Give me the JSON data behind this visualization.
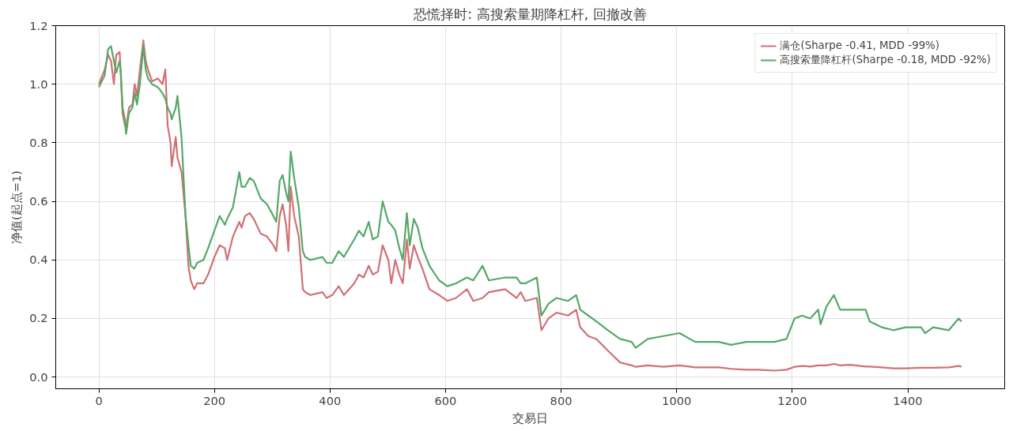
{
  "chart_data": {
    "type": "line",
    "title": "恐慌择时: 高搜索量期降杠杆, 回撤改善",
    "xlabel": "交易日",
    "ylabel": "净值(起点=1)",
    "x": [
      0,
      10,
      16,
      21,
      26,
      30,
      36,
      38,
      41,
      45,
      47,
      52,
      58,
      62,
      66,
      71,
      77,
      81,
      85,
      92,
      102,
      110,
      115,
      119,
      124,
      126,
      133,
      136,
      143,
      150,
      155,
      159,
      165,
      170,
      181,
      189,
      200,
      209,
      218,
      222,
      232,
      243,
      247,
      253,
      261,
      268,
      280,
      291,
      302,
      307,
      313,
      318,
      324,
      328,
      332,
      338,
      346,
      353,
      357,
      366,
      387,
      394,
      404,
      415,
      424,
      442,
      450,
      458,
      467,
      474,
      483,
      491,
      501,
      506,
      513,
      520,
      526,
      533,
      538,
      545,
      552,
      560,
      572,
      589,
      603,
      618,
      637,
      648,
      664,
      675,
      703,
      723,
      730,
      738,
      758,
      766,
      778,
      792,
      812,
      826,
      833,
      847,
      861,
      881,
      902,
      922,
      929,
      950,
      977,
      1005,
      1032,
      1073,
      1094,
      1121,
      1142,
      1169,
      1190,
      1204,
      1217,
      1231,
      1245,
      1249,
      1259,
      1272,
      1283,
      1300,
      1327,
      1334,
      1355,
      1375,
      1396,
      1423,
      1430,
      1444,
      1471,
      1488,
      1493
    ],
    "series": [
      {
        "name": "满仓(Sharpe -0.41, MDD -99%)",
        "color": "#d07175",
        "values": [
          1.0,
          1.05,
          1.1,
          1.08,
          1.0,
          1.1,
          1.11,
          1.03,
          0.9,
          0.86,
          0.85,
          0.92,
          0.93,
          1.0,
          0.96,
          1.05,
          1.15,
          1.08,
          1.05,
          1.01,
          1.02,
          1.0,
          1.05,
          0.86,
          0.8,
          0.72,
          0.82,
          0.75,
          0.7,
          0.55,
          0.38,
          0.33,
          0.3,
          0.32,
          0.32,
          0.35,
          0.41,
          0.45,
          0.44,
          0.4,
          0.48,
          0.53,
          0.51,
          0.55,
          0.56,
          0.54,
          0.49,
          0.48,
          0.45,
          0.43,
          0.55,
          0.59,
          0.52,
          0.43,
          0.65,
          0.55,
          0.48,
          0.3,
          0.29,
          0.28,
          0.29,
          0.27,
          0.28,
          0.31,
          0.28,
          0.32,
          0.35,
          0.34,
          0.38,
          0.35,
          0.36,
          0.45,
          0.4,
          0.32,
          0.4,
          0.35,
          0.32,
          0.47,
          0.37,
          0.45,
          0.41,
          0.37,
          0.3,
          0.28,
          0.26,
          0.27,
          0.3,
          0.26,
          0.27,
          0.29,
          0.3,
          0.27,
          0.29,
          0.26,
          0.27,
          0.16,
          0.2,
          0.22,
          0.21,
          0.23,
          0.17,
          0.14,
          0.13,
          0.09,
          0.05,
          0.04,
          0.035,
          0.04,
          0.035,
          0.04,
          0.033,
          0.033,
          0.028,
          0.025,
          0.025,
          0.022,
          0.025,
          0.035,
          0.038,
          0.036,
          0.04,
          0.04,
          0.04,
          0.045,
          0.04,
          0.042,
          0.036,
          0.036,
          0.033,
          0.03,
          0.03,
          0.032,
          0.032,
          0.032,
          0.033,
          0.038,
          0.036
        ]
      },
      {
        "name": "高搜索量降杠杆(Sharpe -0.18, MDD -92%)",
        "color": "#55a868",
        "values": [
          0.99,
          1.03,
          1.12,
          1.13,
          1.08,
          1.04,
          1.08,
          1.04,
          0.92,
          0.88,
          0.83,
          0.9,
          0.92,
          0.97,
          0.93,
          1.0,
          1.13,
          1.05,
          1.02,
          1.0,
          0.99,
          0.97,
          0.95,
          0.92,
          0.9,
          0.88,
          0.92,
          0.96,
          0.82,
          0.55,
          0.45,
          0.38,
          0.37,
          0.39,
          0.4,
          0.44,
          0.5,
          0.55,
          0.52,
          0.54,
          0.58,
          0.7,
          0.65,
          0.65,
          0.68,
          0.67,
          0.61,
          0.59,
          0.55,
          0.53,
          0.67,
          0.69,
          0.63,
          0.6,
          0.77,
          0.68,
          0.58,
          0.43,
          0.41,
          0.4,
          0.41,
          0.39,
          0.39,
          0.43,
          0.41,
          0.47,
          0.5,
          0.48,
          0.53,
          0.47,
          0.48,
          0.6,
          0.53,
          0.52,
          0.5,
          0.44,
          0.4,
          0.56,
          0.45,
          0.54,
          0.51,
          0.44,
          0.38,
          0.33,
          0.31,
          0.32,
          0.34,
          0.33,
          0.38,
          0.33,
          0.34,
          0.34,
          0.32,
          0.32,
          0.34,
          0.21,
          0.25,
          0.27,
          0.26,
          0.28,
          0.23,
          0.21,
          0.19,
          0.16,
          0.13,
          0.12,
          0.1,
          0.13,
          0.14,
          0.15,
          0.12,
          0.12,
          0.11,
          0.12,
          0.12,
          0.12,
          0.13,
          0.2,
          0.21,
          0.2,
          0.23,
          0.18,
          0.24,
          0.28,
          0.23,
          0.23,
          0.23,
          0.19,
          0.17,
          0.16,
          0.17,
          0.17,
          0.15,
          0.17,
          0.16,
          0.2,
          0.19
        ]
      }
    ],
    "xlim": [
      -74.65,
      1567.65
    ],
    "ylim": [
      -0.04,
      1.2
    ],
    "xticks": [
      0,
      200,
      400,
      600,
      800,
      1000,
      1200,
      1400
    ],
    "yticks": [
      {
        "value": 0,
        "label": "0.0"
      },
      {
        "value": 0.2,
        "label": "0.2"
      },
      {
        "value": 0.4,
        "label": "0.4"
      },
      {
        "value": 0.6,
        "label": "0.6"
      },
      {
        "value": 0.8,
        "label": "0.8"
      },
      {
        "value": 1.0,
        "label": "1.0"
      },
      {
        "value": 1.2,
        "label": "1.2"
      }
    ],
    "grid": true,
    "legend": "top right",
    "line_style": "solid",
    "marker": "none"
  }
}
